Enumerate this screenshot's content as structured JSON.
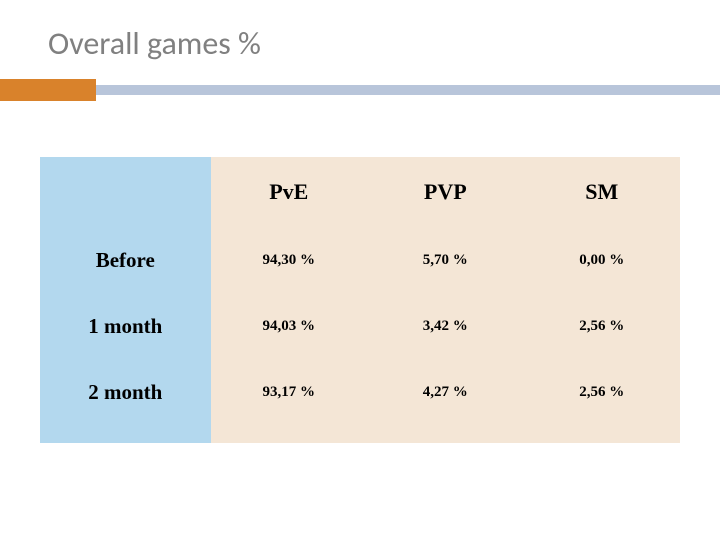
{
  "title": "Overall games %",
  "accent_color_orange": "#d9822b",
  "accent_color_blue": "#b8c5da",
  "table": {
    "type": "table",
    "header_bg_left": "#b3d8ee",
    "header_bg_top": "#f4e6d6",
    "cell_bg": "#f4e6d6",
    "header_fontsize": 22,
    "rowlabel_fontsize": 21,
    "cell_fontsize": 15,
    "text_color": "#000000",
    "columns": [
      "PvE",
      "PVP",
      "SM"
    ],
    "row_labels": [
      "Before",
      "1 month",
      "2 month"
    ],
    "rows": [
      [
        "94,30 %",
        "5,70 %",
        "0,00 %"
      ],
      [
        "94,03 %",
        "3,42 %",
        "2,56 %"
      ],
      [
        "93,17 %",
        "4,27 %",
        "2,56 %"
      ]
    ]
  }
}
